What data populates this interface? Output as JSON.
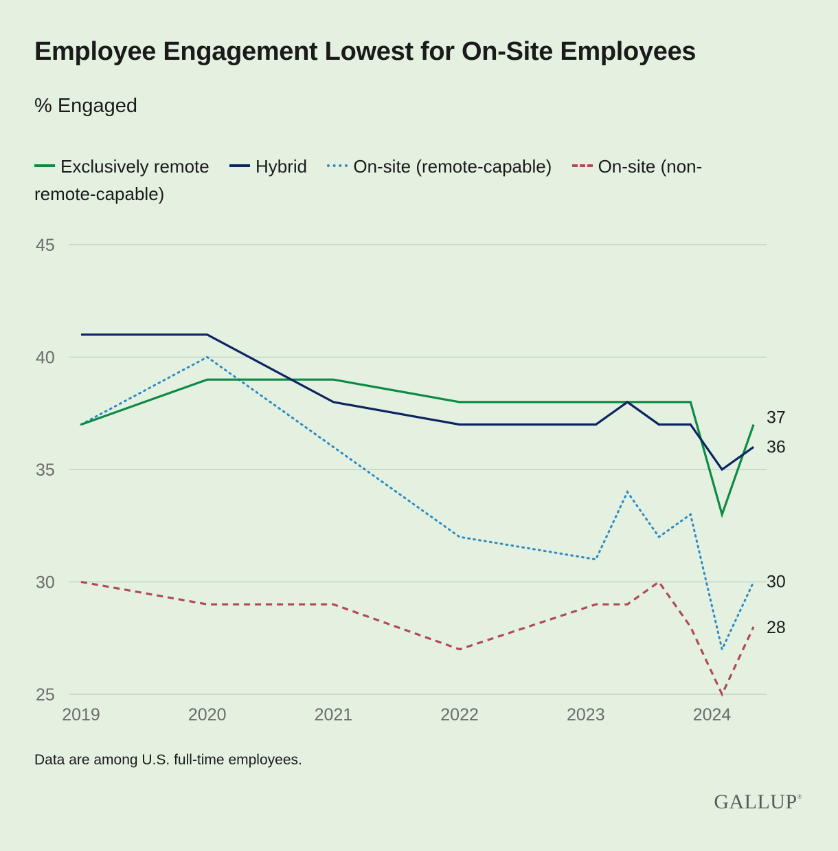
{
  "title": "Employee Engagement Lowest for On-Site Employees",
  "subtitle": "% Engaged",
  "footnote": "Data are among U.S. full-time employees.",
  "logo": "GALLUP",
  "chart_data": {
    "type": "line",
    "title": "Employee Engagement Lowest for On-Site Employees",
    "ylabel": "% Engaged",
    "xlim": [
      2019,
      2024.4
    ],
    "ylim": [
      25,
      45
    ],
    "yticks": [
      25,
      30,
      35,
      40,
      45
    ],
    "xticks": [
      2019,
      2020,
      2021,
      2022,
      2023,
      2024
    ],
    "grid": true,
    "legend_position": "top",
    "series": [
      {
        "name": "Exclusively remote",
        "color": "#0d8a43",
        "style": "solid",
        "end_label": "37",
        "x": [
          2019,
          2020,
          2021,
          2022,
          2023,
          2023.25,
          2023.5,
          2023.83,
          2024.08,
          2024.33
        ],
        "y": [
          37,
          39,
          39,
          38,
          38,
          38,
          38,
          38,
          33,
          37
        ]
      },
      {
        "name": "Hybrid",
        "color": "#0c2461",
        "style": "solid",
        "end_label": "36",
        "x": [
          2019,
          2020,
          2021,
          2022,
          2023.08,
          2023.33,
          2023.58,
          2023.83,
          2024.08,
          2024.33
        ],
        "y": [
          41,
          41,
          38,
          37,
          37,
          38,
          37,
          37,
          35,
          36
        ]
      },
      {
        "name": "On-site (remote-capable)",
        "color": "#2e8ac2",
        "style": "dotted",
        "end_label": "30",
        "x": [
          2019,
          2020,
          2021,
          2022,
          2023.08,
          2023.33,
          2023.58,
          2023.83,
          2024.08,
          2024.33
        ],
        "y": [
          37,
          40,
          36,
          32,
          31,
          34,
          32,
          33,
          27,
          30
        ]
      },
      {
        "name": "On-site (non-remote-capable)",
        "color": "#b04a55",
        "style": "dashed",
        "end_label": "28",
        "x": [
          2019,
          2020,
          2021,
          2022,
          2023.08,
          2023.33,
          2023.58,
          2023.83,
          2024.08,
          2024.33
        ],
        "y": [
          30,
          29,
          29,
          27,
          29,
          29,
          30,
          28,
          25,
          28
        ]
      }
    ]
  }
}
